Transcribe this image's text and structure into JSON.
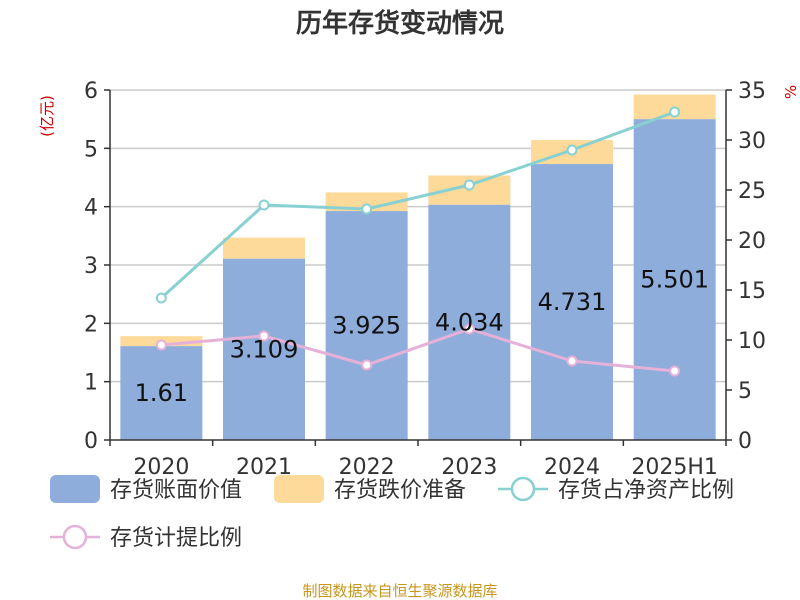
{
  "chart_data": {
    "type": "bar",
    "title": "历年存货变动情况",
    "categories": [
      "2020",
      "2021",
      "2022",
      "2023",
      "2024",
      "2025H1"
    ],
    "left_axis": {
      "unit": "(亿元)",
      "range": [
        0,
        6
      ],
      "ticks": [
        "0",
        "1",
        "2",
        "3",
        "4",
        "5",
        "6"
      ]
    },
    "right_axis": {
      "unit": "%",
      "range": [
        0,
        35
      ],
      "ticks": [
        "0",
        "5",
        "10",
        "15",
        "20",
        "25",
        "30",
        "35"
      ]
    },
    "series": [
      {
        "name": "存货账面价值",
        "kind": "bar",
        "axis": "left",
        "color": "#8eaddb",
        "values": [
          1.61,
          3.109,
          3.925,
          4.034,
          4.731,
          5.501
        ],
        "labels": [
          "1.61",
          "3.109",
          "3.925",
          "4.034",
          "4.731",
          "5.501"
        ]
      },
      {
        "name": "存货跌价准备",
        "kind": "bar-stack",
        "axis": "left",
        "color": "#fdd99a",
        "values": [
          0.17,
          0.36,
          0.32,
          0.5,
          0.41,
          0.42
        ]
      },
      {
        "name": "存货占净资产比例",
        "kind": "line",
        "axis": "right",
        "color": "#88d1d1",
        "values": [
          14.2,
          23.5,
          23.1,
          25.5,
          29.0,
          32.8
        ]
      },
      {
        "name": "存货计提比例",
        "kind": "line",
        "axis": "right",
        "color": "#e6b1d8",
        "values": [
          9.5,
          10.4,
          7.5,
          11.1,
          7.9,
          6.9
        ]
      }
    ],
    "grid": true,
    "legend_position": "bottom",
    "source": "制图数据来自恒生聚源数据库"
  }
}
